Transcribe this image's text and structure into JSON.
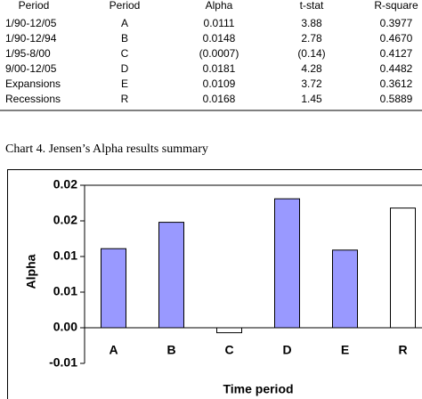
{
  "table": {
    "header": [
      "Period",
      "Period",
      "Alpha",
      "t-stat",
      "R-square"
    ],
    "rows": [
      [
        "1/90-12/05",
        "A",
        "0.0111",
        "3.88",
        "0.3977"
      ],
      [
        "1/90-12/94",
        "B",
        "0.0148",
        "2.78",
        "0.4670"
      ],
      [
        "1/95-8/00",
        "C",
        "(0.0007)",
        "(0.14)",
        "0.4127"
      ],
      [
        "9/00-12/05",
        "D",
        "0.0181",
        "4.28",
        "0.4482"
      ],
      [
        "Expansions",
        "E",
        "0.0109",
        "3.72",
        "0.3612"
      ],
      [
        "Recessions",
        "R",
        "0.0168",
        "1.45",
        "0.5889"
      ]
    ]
  },
  "caption": "Chart 4.  Jensen’s Alpha results summary",
  "chart_data": {
    "type": "bar",
    "xlabel": "Time period",
    "ylabel": "Alpha",
    "categories": [
      "A",
      "B",
      "C",
      "D",
      "E",
      "R"
    ],
    "values": [
      0.0111,
      0.0148,
      -0.0007,
      0.0181,
      0.0109,
      0.0168
    ],
    "colors": [
      "#9999ff",
      "#9999ff",
      "#ffffff",
      "#9999ff",
      "#9999ff",
      "#ffffff"
    ],
    "ylim": [
      -0.005,
      0.02
    ],
    "yticks": [
      {
        "value": -0.005,
        "label": "-0.01"
      },
      {
        "value": 0,
        "label": "0.00"
      },
      {
        "value": 0.005,
        "label": "0.01"
      },
      0.01,
      {
        "value": 0.015,
        "label": "0.02"
      },
      0.02
    ]
  }
}
